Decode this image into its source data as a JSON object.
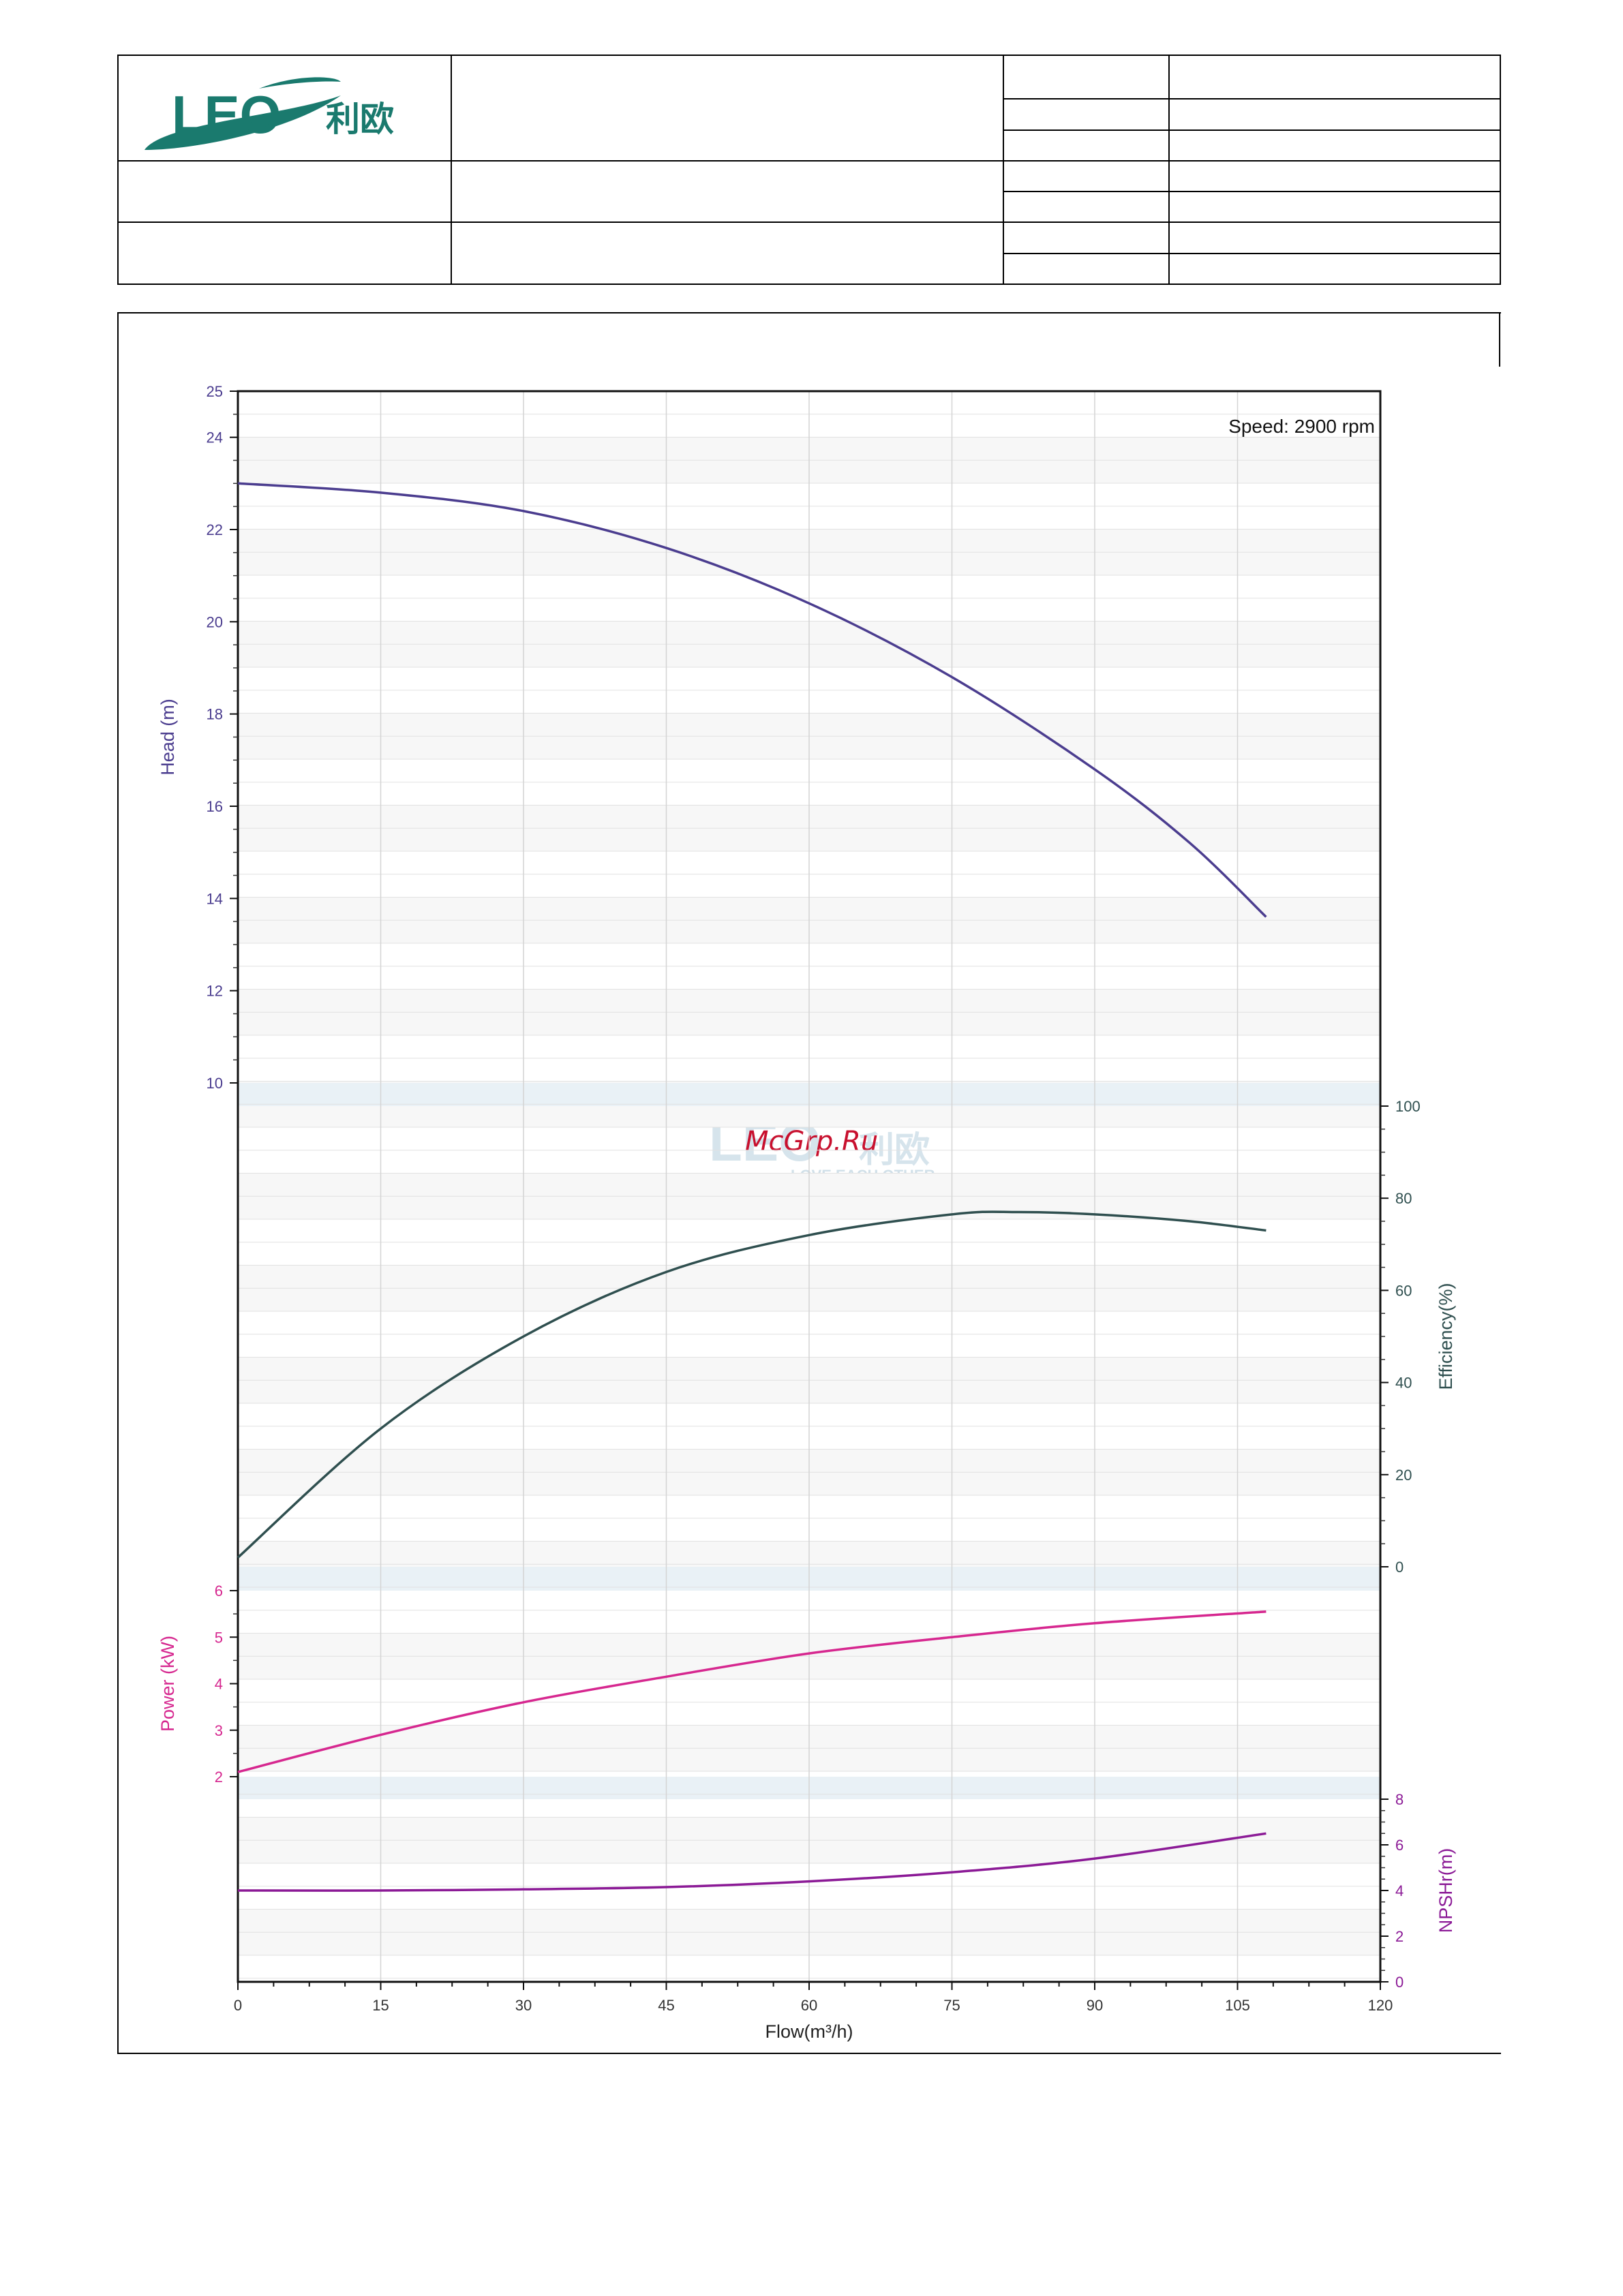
{
  "brand": {
    "logo_text": "LEO",
    "logo_cn": "利欧",
    "watermark_tagline": "LOVE EACH OTHER",
    "watermark_site": "McGrp.Ru"
  },
  "colors": {
    "head": "#4b3d8f",
    "efficiency": "#2f4f4f",
    "power": "#d6278f",
    "npsh": "#8b1a96",
    "logo_green": "#1a7a6e"
  },
  "chart_data": {
    "type": "line",
    "annotation": "Speed: 2900 rpm",
    "x_axis": {
      "label": "Flow(m³/h)",
      "range": [
        0,
        120
      ],
      "ticks": [
        "0",
        "15",
        "30",
        "45",
        "60",
        "75",
        "90",
        "105",
        "120"
      ]
    },
    "panels": [
      {
        "name": "head",
        "axis_label": "Head (m)",
        "axis_side": "left",
        "range": [
          10,
          25
        ],
        "ticks": [
          "10",
          "12",
          "14",
          "16",
          "18",
          "20",
          "22",
          "24",
          "25"
        ],
        "series": [
          {
            "name": "Head (m)",
            "x": [
              0,
              15,
              30,
              45,
              60,
              75,
              90,
              100,
              108
            ],
            "y": [
              23.0,
              22.8,
              22.4,
              21.6,
              20.4,
              18.8,
              16.8,
              15.2,
              13.6
            ]
          }
        ]
      },
      {
        "name": "efficiency",
        "axis_label": "Efficiency(%)",
        "axis_side": "right",
        "range": [
          0,
          100
        ],
        "ticks": [
          "0",
          "20",
          "40",
          "60",
          "80",
          "100"
        ],
        "series": [
          {
            "name": "Efficiency(%)",
            "x": [
              0,
              15,
              30,
              45,
              60,
              75,
              82,
              90,
              100,
              108
            ],
            "y": [
              2,
              30,
              50,
              64,
              72,
              76.5,
              77,
              76.5,
              75,
              73
            ]
          }
        ]
      },
      {
        "name": "power",
        "axis_label": "Power (kW)",
        "axis_side": "left",
        "range": [
          2,
          6
        ],
        "ticks": [
          "2",
          "3",
          "4",
          "5",
          "6"
        ],
        "series": [
          {
            "name": "Power (kW)",
            "x": [
              0,
              15,
              30,
              45,
              60,
              75,
              90,
              108
            ],
            "y": [
              2.1,
              2.9,
              3.6,
              4.15,
              4.65,
              5.0,
              5.3,
              5.55
            ]
          }
        ]
      },
      {
        "name": "npsh",
        "axis_label": "NPSHr(m)",
        "axis_side": "right",
        "range": [
          0,
          8
        ],
        "ticks": [
          "0",
          "2",
          "4",
          "6",
          "8"
        ],
        "series": [
          {
            "name": "NPSHr(m)",
            "x": [
              0,
              15,
              30,
              45,
              60,
              75,
              90,
              108
            ],
            "y": [
              4.0,
              4.0,
              4.05,
              4.15,
              4.4,
              4.8,
              5.4,
              6.5
            ]
          }
        ]
      }
    ],
    "grid": true
  }
}
